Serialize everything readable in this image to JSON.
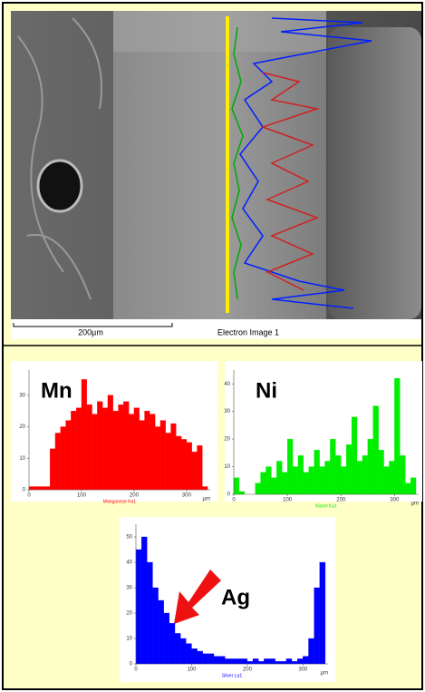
{
  "image": {
    "scale_bar": "200µm",
    "caption": "Electron Image 1"
  },
  "chart_data": [
    {
      "type": "histogram",
      "title": "Mn",
      "xlabel": "Manganese Ka1",
      "x_unit": "µm",
      "color": "#ff0000",
      "bins": [
        0,
        10,
        20,
        30,
        40,
        50,
        60,
        70,
        80,
        90,
        100,
        110,
        120,
        130,
        140,
        150,
        160,
        170,
        180,
        190,
        200,
        210,
        220,
        230,
        240,
        250,
        260,
        270,
        280,
        290,
        300,
        310,
        320,
        330,
        340
      ],
      "values": [
        1,
        1,
        1,
        1,
        13,
        18,
        20,
        22,
        25,
        26,
        35,
        27,
        24,
        28,
        26,
        30,
        25,
        27,
        28,
        24,
        26,
        22,
        25,
        24,
        20,
        22,
        18,
        21,
        17,
        16,
        15,
        12,
        14,
        1
      ],
      "xlim": [
        0,
        345
      ],
      "xticks": [
        0,
        100,
        200,
        300
      ],
      "ylim": [
        0,
        38
      ],
      "yticks": [
        0,
        10,
        20,
        30
      ]
    },
    {
      "type": "histogram",
      "title": "Ni",
      "xlabel": "Nickel Ka1",
      "x_unit": "µm",
      "color": "#00ee00",
      "bins": [
        0,
        10,
        20,
        30,
        40,
        50,
        60,
        70,
        80,
        90,
        100,
        110,
        120,
        130,
        140,
        150,
        160,
        170,
        180,
        190,
        200,
        210,
        220,
        230,
        240,
        250,
        260,
        270,
        280,
        290,
        300,
        310,
        320,
        330,
        340
      ],
      "values": [
        6,
        1,
        0,
        0,
        4,
        8,
        10,
        6,
        12,
        8,
        20,
        10,
        14,
        8,
        10,
        16,
        10,
        12,
        20,
        14,
        10,
        18,
        28,
        12,
        14,
        20,
        32,
        16,
        10,
        12,
        42,
        14,
        4,
        6
      ],
      "xlim": [
        0,
        345
      ],
      "xticks": [
        0,
        100,
        200,
        300
      ],
      "ylim": [
        0,
        45
      ],
      "yticks": [
        0,
        10,
        20,
        30,
        40
      ]
    },
    {
      "type": "histogram",
      "title": "Ag",
      "xlabel": "Silver La1",
      "x_unit": "µm",
      "color": "#0000ff",
      "bins": [
        0,
        10,
        20,
        30,
        40,
        50,
        60,
        70,
        80,
        90,
        100,
        110,
        120,
        130,
        140,
        150,
        160,
        170,
        180,
        190,
        200,
        210,
        220,
        230,
        240,
        250,
        260,
        270,
        280,
        290,
        300,
        310,
        320,
        330,
        340
      ],
      "values": [
        45,
        50,
        40,
        30,
        25,
        20,
        16,
        12,
        10,
        8,
        6,
        5,
        4,
        4,
        3,
        3,
        2,
        2,
        2,
        2,
        1,
        2,
        1,
        2,
        2,
        1,
        1,
        2,
        1,
        2,
        3,
        10,
        30,
        40
      ],
      "xlim": [
        0,
        345
      ],
      "xticks": [
        0,
        100,
        200,
        300
      ],
      "ylim": [
        0,
        55
      ],
      "yticks": [
        0,
        10,
        20,
        30,
        40,
        50
      ]
    }
  ]
}
